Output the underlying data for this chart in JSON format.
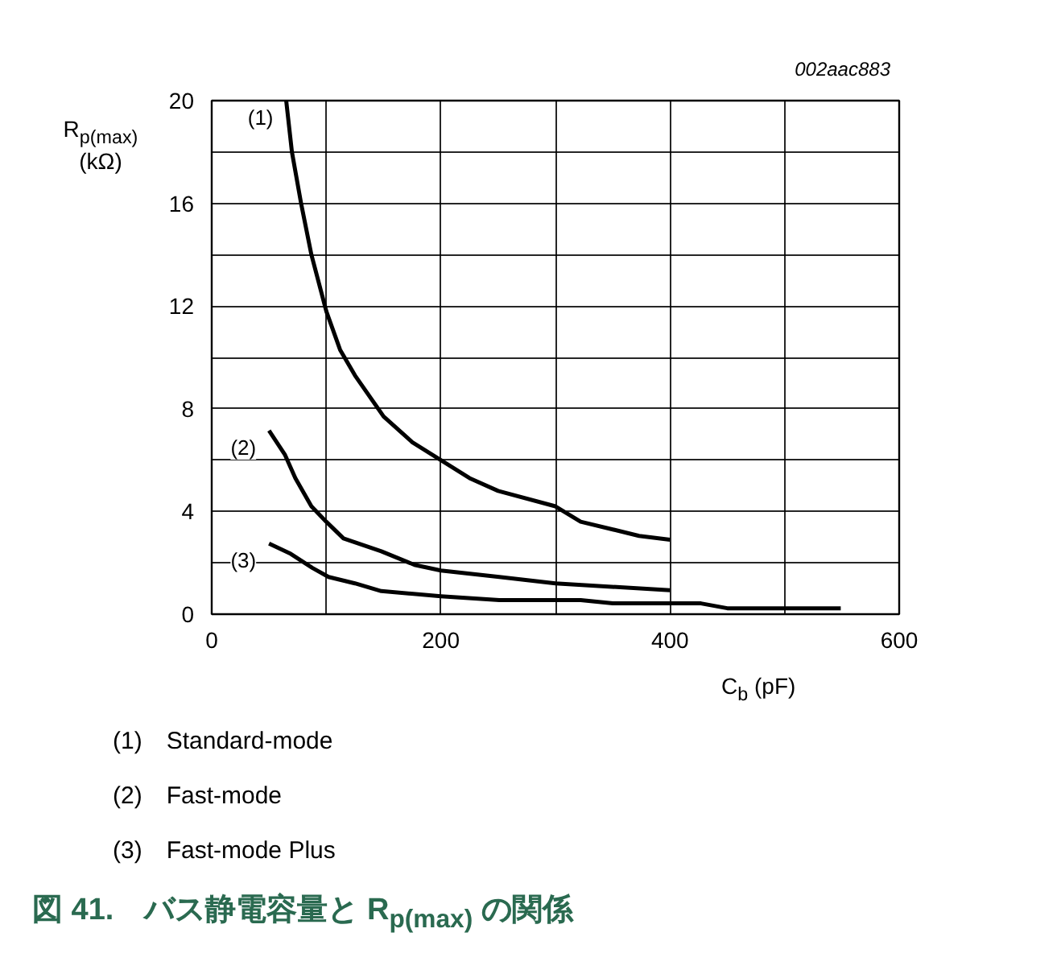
{
  "chart_data": {
    "type": "line",
    "title": "図 41.　バス静電容量と R$_{p(max)}$ の関係",
    "subtitle": "002aac883",
    "xlabel": "C$_{b}$ (pF)",
    "ylabel": "R$_{p(max)}$\n(kΩ)",
    "xlim": [
      0,
      600
    ],
    "ylim": [
      0,
      20
    ],
    "xticks": [
      0,
      {
        "value": 100,
        "label": null
      },
      200,
      {
        "value": 300,
        "label": null
      },
      400,
      {
        "value": 500,
        "label": null
      },
      600
    ],
    "yticks": [
      0,
      {
        "value": 2,
        "label": null
      },
      4,
      {
        "value": 6,
        "label": null
      },
      8,
      {
        "value": 10,
        "label": null
      },
      12,
      {
        "value": 14,
        "label": null
      },
      16,
      {
        "value": 18,
        "label": null
      },
      20
    ],
    "grid": true,
    "legend": false,
    "marker": "none",
    "line_style": "solid",
    "series": [
      {
        "name": "(1)",
        "color": "#000000",
        "x": [
          65,
          70,
          78,
          87,
          100,
          112,
          125,
          150,
          175,
          200,
          225,
          250,
          300,
          322,
          350,
          373,
          400
        ],
        "values": [
          20,
          18,
          16,
          14,
          11.8,
          10.3,
          9.3,
          7.7,
          6.7,
          6.0,
          5.3,
          4.8,
          4.2,
          3.6,
          3.3,
          3.05,
          2.9
        ]
      },
      {
        "name": "(2)",
        "color": "#000000",
        "x": [
          50,
          64,
          73,
          87,
          100,
          115,
          148,
          177,
          200,
          251,
          300,
          400
        ],
        "values": [
          7.15,
          6.2,
          5.3,
          4.2,
          3.6,
          2.95,
          2.45,
          1.92,
          1.7,
          1.45,
          1.2,
          0.93
        ]
      },
      {
        "name": "(3)",
        "color": "#000000",
        "x": [
          50,
          69,
          88,
          102,
          125,
          148,
          200,
          251,
          322,
          350,
          427,
          450,
          549
        ],
        "values": [
          2.75,
          2.35,
          1.8,
          1.45,
          1.2,
          0.9,
          0.7,
          0.55,
          0.55,
          0.42,
          0.42,
          0.23,
          0.23
        ]
      }
    ],
    "annotations": [
      "(1) Standard-mode",
      "(2) Fast-mode",
      "(3) Fast-mode Plus"
    ]
  }
}
